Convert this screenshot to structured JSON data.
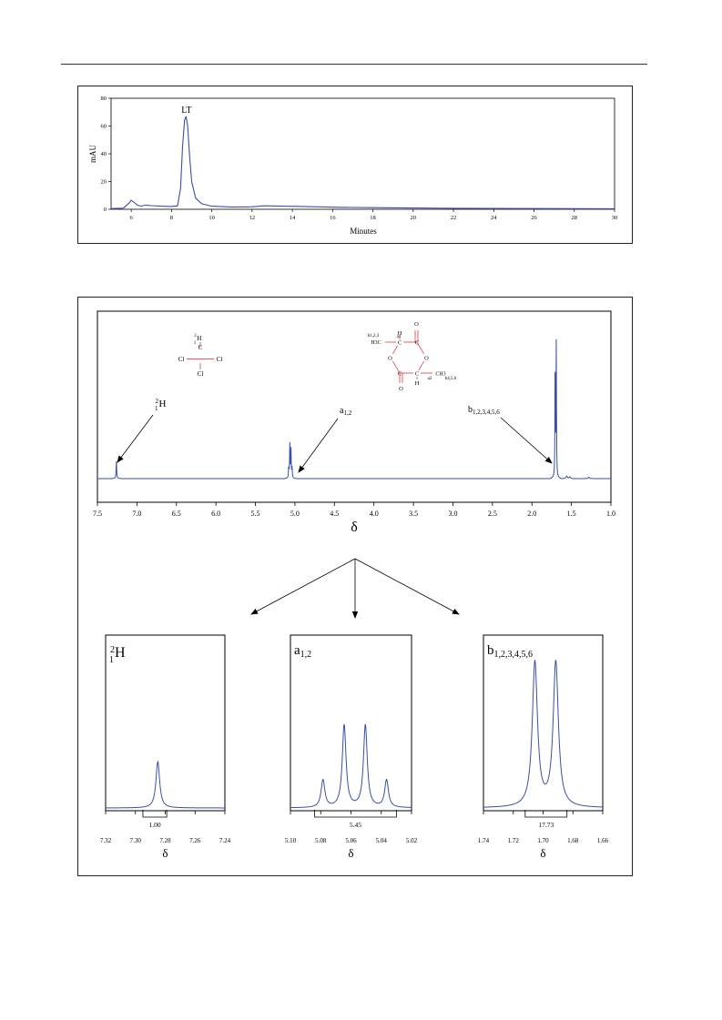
{
  "colors": {
    "trace": "#3a4fa8",
    "accent": "#e0202a",
    "axis": "#000000"
  },
  "hplc": {
    "chart_data": {
      "type": "line",
      "xlabel": "Minutes",
      "ylabel": "mAU",
      "xlim": [
        5,
        30
      ],
      "ylim": [
        0,
        80
      ],
      "xticks": [
        6,
        8,
        10,
        12,
        14,
        16,
        18,
        20,
        22,
        24,
        26,
        28,
        30
      ],
      "yticks": [
        0,
        20,
        40,
        60,
        80
      ],
      "annotation": {
        "label": "LT",
        "x": 8.7,
        "y": 67
      },
      "series": [
        {
          "x": [
            5.0,
            5.6,
            5.9,
            6.0,
            6.15,
            6.3,
            6.5,
            6.7,
            7.0,
            7.5,
            8.0,
            8.3,
            8.45,
            8.55,
            8.65,
            8.72,
            8.8,
            8.9,
            9.0,
            9.2,
            9.5,
            10.0,
            11.0,
            12.0,
            12.6,
            13.5,
            14.5,
            16.0,
            18.0,
            20.0,
            22.0,
            24.0,
            26.0,
            28.0,
            30.0
          ],
          "y": [
            0.5,
            0.8,
            4.5,
            6.5,
            5.0,
            3.0,
            2.2,
            3.0,
            2.6,
            2.2,
            2.0,
            2.5,
            15,
            45,
            64,
            67,
            60,
            38,
            20,
            8,
            4,
            2.2,
            1.6,
            1.8,
            2.5,
            2.2,
            2.0,
            1.5,
            1.2,
            0.9,
            0.7,
            0.6,
            0.5,
            0.45,
            0.4
          ]
        }
      ]
    }
  },
  "nmr": {
    "chart_data": {
      "type": "line",
      "xlabel": "δ",
      "xlim": [
        7.5,
        1.0
      ],
      "xticks": [
        7.5,
        7.0,
        6.5,
        6.0,
        5.5,
        5.0,
        4.5,
        4.0,
        3.5,
        3.0,
        2.5,
        2.0,
        1.5,
        1.0
      ],
      "x_tick_labels": [
        "7.5",
        "7.0",
        "6.5",
        "6.0",
        "5.5",
        "5.0",
        "4.5",
        "4.0",
        "3.5",
        "3.0",
        "2.5",
        "2.0",
        "1.5",
        "1.0"
      ],
      "peaks": [
        {
          "x": 7.26,
          "height": 0.13,
          "label_main": "H",
          "label_sup": "2",
          "label_sub": "1"
        },
        {
          "x": 5.06,
          "height": 0.24,
          "label_main": "a",
          "label_sub": "1,2"
        },
        {
          "x": 1.69,
          "height": 1.0,
          "label_main": "b",
          "label_sub": "1,2,3,4,5,6"
        }
      ]
    },
    "chloroform": {
      "top": "H",
      "top_sup": "2",
      "top_sub": "1",
      "left": "Cl",
      "right": "Cl",
      "bottom": "Cl",
      "center": "C"
    },
    "lactide": {
      "labels": [
        "O",
        "O",
        "O",
        "O",
        "C",
        "C",
        "C",
        "C",
        "H",
        "H",
        "H3C",
        "CH3",
        "a1",
        "a2",
        "b1,2,3",
        "b4,5,6"
      ]
    }
  },
  "zooms": [
    {
      "title_main": "H",
      "title_sup": "2",
      "title_sub": "1",
      "chart_data": {
        "type": "line",
        "xlabel": "δ",
        "xlim": [
          7.32,
          7.24
        ],
        "xticks": [
          7.32,
          7.3,
          7.28,
          7.26,
          7.24
        ],
        "x_tick_labels": [
          "7.32",
          "7.30",
          "7.28",
          "7.26",
          "7.24"
        ],
        "peaks": [
          {
            "x": 7.285,
            "height": 0.32
          }
        ],
        "integral": {
          "from": 7.295,
          "to": 7.279,
          "label": "1.00"
        }
      }
    },
    {
      "title_main": "a",
      "title_sub": "1,2",
      "chart_data": {
        "type": "line",
        "xlabel": "δ",
        "xlim": [
          5.1,
          5.02
        ],
        "xticks": [
          5.1,
          5.08,
          5.06,
          5.04,
          5.02
        ],
        "x_tick_labels": [
          "5.10",
          "5.08",
          "5.06",
          "5.04",
          "5.02"
        ],
        "peaks": [
          {
            "x": 5.0785,
            "height": 0.19
          },
          {
            "x": 5.0645,
            "height": 0.57
          },
          {
            "x": 5.0505,
            "height": 0.57
          },
          {
            "x": 5.0365,
            "height": 0.19
          }
        ],
        "integral": {
          "from": 5.084,
          "to": 5.03,
          "label": "5.45"
        }
      }
    },
    {
      "title_main": "b",
      "title_sub": "1,2,3,4,5,6",
      "chart_data": {
        "type": "line",
        "xlabel": "δ",
        "xlim": [
          1.74,
          1.66
        ],
        "xticks": [
          1.74,
          1.72,
          1.7,
          1.68,
          1.66
        ],
        "x_tick_labels": [
          "1.74",
          "1.72",
          "1.70",
          "1.68",
          "1.66"
        ],
        "peaks": [
          {
            "x": 1.7055,
            "height": 1.0
          },
          {
            "x": 1.6915,
            "height": 1.0
          }
        ],
        "integral": {
          "from": 1.712,
          "to": 1.684,
          "label": "17.73"
        }
      }
    }
  ]
}
